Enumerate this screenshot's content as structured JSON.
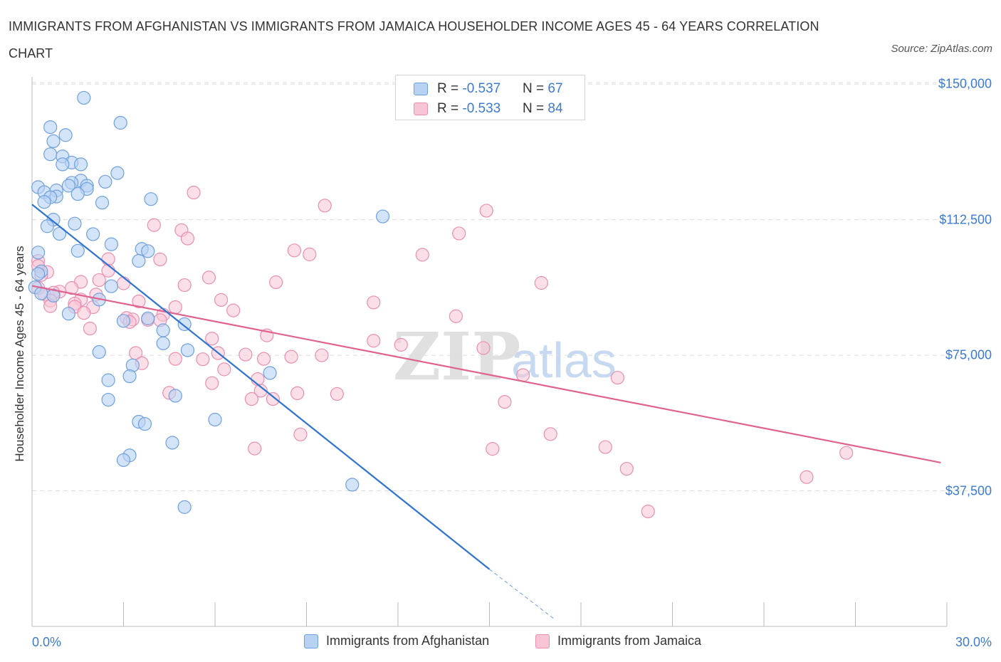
{
  "title": "IMMIGRANTS FROM AFGHANISTAN VS IMMIGRANTS FROM JAMAICA HOUSEHOLDER INCOME AGES 45 - 64 YEARS CORRELATION CHART",
  "source": "Source: ZipAtlas.com",
  "watermark": {
    "zip": "ZIP",
    "atlas": "atlas"
  },
  "colors": {
    "blue_fill": "#b8d2f3",
    "blue_stroke": "#6fa0dc",
    "blue_line": "#2f74d0",
    "pink_fill": "#f7c5d6",
    "pink_stroke": "#e98fb0",
    "pink_line": "#e0628f",
    "tick_text": "#3d7bd0",
    "grid": "#dcdcdc"
  },
  "legend_top": [
    {
      "r_label": "R = ",
      "r_value": "-0.537",
      "n_label": "N = ",
      "n_value": "67",
      "color": "blue"
    },
    {
      "r_label": "R = ",
      "r_value": "-0.533",
      "n_label": "N = ",
      "n_value": "84",
      "color": "pink"
    }
  ],
  "legend_bottom": [
    {
      "label": "Immigrants from Afghanistan",
      "color": "blue"
    },
    {
      "label": "Immigrants from Jamaica",
      "color": "pink"
    }
  ],
  "chart_data": {
    "type": "scatter",
    "title": "IMMIGRANTS FROM AFGHANISTAN VS IMMIGRANTS FROM JAMAICA HOUSEHOLDER INCOME AGES 45 - 64 YEARS CORRELATION CHART",
    "xlabel": "",
    "ylabel": "Householder Income Ages 45 - 64 years",
    "xlim": [
      0,
      30
    ],
    "ylim": [
      0,
      152000
    ],
    "x_tick_labels": [
      "0.0%",
      "30.0%"
    ],
    "y_ticks": [
      37500,
      75000,
      112500,
      150000
    ],
    "y_tick_labels": [
      "$37,500",
      "$75,000",
      "$112,500",
      "$150,000"
    ],
    "grid": "horizontal dashed",
    "legend_placement": "top-center and bottom",
    "series": [
      {
        "name": "Immigrants from Afghanistan",
        "color": "blue",
        "points": [
          [
            1.7,
            146200
          ],
          [
            0.6,
            138100
          ],
          [
            2.9,
            139300
          ],
          [
            1.1,
            135900
          ],
          [
            0.7,
            134200
          ],
          [
            0.6,
            130600
          ],
          [
            1.0,
            130000
          ],
          [
            1.3,
            128300
          ],
          [
            1.0,
            127800
          ],
          [
            1.6,
            127800
          ],
          [
            2.8,
            125400
          ],
          [
            1.6,
            123300
          ],
          [
            1.3,
            122700
          ],
          [
            2.4,
            123000
          ],
          [
            0.2,
            121500
          ],
          [
            0.4,
            120100
          ],
          [
            1.2,
            121900
          ],
          [
            1.8,
            121900
          ],
          [
            1.8,
            121000
          ],
          [
            0.8,
            120600
          ],
          [
            1.5,
            119600
          ],
          [
            0.8,
            118900
          ],
          [
            0.6,
            118700
          ],
          [
            3.9,
            118200
          ],
          [
            0.4,
            117400
          ],
          [
            2.3,
            117200
          ],
          [
            11.5,
            113400
          ],
          [
            0.7,
            112500
          ],
          [
            1.4,
            111400
          ],
          [
            0.5,
            110700
          ],
          [
            0.9,
            108600
          ],
          [
            2.0,
            108500
          ],
          [
            2.6,
            105700
          ],
          [
            0.2,
            103400
          ],
          [
            1.5,
            103900
          ],
          [
            3.6,
            104400
          ],
          [
            3.8,
            103800
          ],
          [
            3.5,
            101100
          ],
          [
            0.3,
            98200
          ],
          [
            0.2,
            97500
          ],
          [
            0.1,
            93800
          ],
          [
            2.6,
            94100
          ],
          [
            0.3,
            92100
          ],
          [
            0.7,
            91500
          ],
          [
            2.2,
            90400
          ],
          [
            1.2,
            86500
          ],
          [
            3.0,
            84500
          ],
          [
            3.8,
            85200
          ],
          [
            5.0,
            83600
          ],
          [
            4.3,
            81900
          ],
          [
            4.3,
            78300
          ],
          [
            5.1,
            76400
          ],
          [
            2.2,
            75900
          ],
          [
            3.3,
            72200
          ],
          [
            3.2,
            69200
          ],
          [
            7.8,
            70100
          ],
          [
            2.5,
            68100
          ],
          [
            4.7,
            63800
          ],
          [
            2.5,
            62700
          ],
          [
            6.0,
            57200
          ],
          [
            3.5,
            56600
          ],
          [
            3.7,
            56000
          ],
          [
            4.6,
            50800
          ],
          [
            3.2,
            47300
          ],
          [
            3.0,
            46000
          ],
          [
            10.5,
            39200
          ],
          [
            5.0,
            33000
          ]
        ]
      },
      {
        "name": "Immigrants from Jamaica",
        "color": "pink",
        "points": [
          [
            5.3,
            120000
          ],
          [
            9.6,
            116400
          ],
          [
            14.9,
            115000
          ],
          [
            4.0,
            111000
          ],
          [
            4.9,
            109600
          ],
          [
            14.0,
            108700
          ],
          [
            5.1,
            107300
          ],
          [
            8.6,
            104000
          ],
          [
            9.1,
            102900
          ],
          [
            12.8,
            102800
          ],
          [
            4.2,
            101500
          ],
          [
            2.5,
            101600
          ],
          [
            0.2,
            101100
          ],
          [
            0.2,
            99700
          ],
          [
            0.5,
            98000
          ],
          [
            2.5,
            98400
          ],
          [
            0.3,
            97200
          ],
          [
            5.8,
            96500
          ],
          [
            2.2,
            95800
          ],
          [
            1.6,
            95300
          ],
          [
            8.0,
            95200
          ],
          [
            3.0,
            94900
          ],
          [
            16.7,
            95000
          ],
          [
            5.0,
            94400
          ],
          [
            0.2,
            93600
          ],
          [
            1.3,
            93600
          ],
          [
            0.9,
            92600
          ],
          [
            0.7,
            92300
          ],
          [
            0.4,
            91900
          ],
          [
            2.1,
            91800
          ],
          [
            1.6,
            90400
          ],
          [
            0.6,
            90100
          ],
          [
            6.2,
            90300
          ],
          [
            11.2,
            89600
          ],
          [
            3.5,
            89900
          ],
          [
            1.4,
            89300
          ],
          [
            0.6,
            88600
          ],
          [
            2.0,
            88300
          ],
          [
            1.4,
            88400
          ],
          [
            4.7,
            88300
          ],
          [
            6.6,
            87400
          ],
          [
            1.7,
            86700
          ],
          [
            4.3,
            86200
          ],
          [
            13.9,
            85800
          ],
          [
            3.1,
            85300
          ],
          [
            3.3,
            84900
          ],
          [
            3.8,
            84800
          ],
          [
            4.2,
            84700
          ],
          [
            3.2,
            84200
          ],
          [
            1.9,
            82400
          ],
          [
            7.7,
            80500
          ],
          [
            5.9,
            79600
          ],
          [
            11.2,
            79000
          ],
          [
            12.1,
            77900
          ],
          [
            14.8,
            77000
          ],
          [
            3.4,
            75600
          ],
          [
            4.7,
            74000
          ],
          [
            6.1,
            75600
          ],
          [
            5.6,
            73900
          ],
          [
            7.0,
            75200
          ],
          [
            7.6,
            74000
          ],
          [
            8.5,
            74600
          ],
          [
            9.5,
            75000
          ],
          [
            3.6,
            72800
          ],
          [
            6.3,
            71100
          ],
          [
            16.1,
            69500
          ],
          [
            19.2,
            68800
          ],
          [
            7.4,
            68400
          ],
          [
            5.9,
            67300
          ],
          [
            7.5,
            65200
          ],
          [
            4.5,
            64600
          ],
          [
            8.7,
            64500
          ],
          [
            10.0,
            64300
          ],
          [
            7.2,
            62900
          ],
          [
            7.9,
            62900
          ],
          [
            15.5,
            62100
          ],
          [
            8.8,
            53100
          ],
          [
            17.0,
            53200
          ],
          [
            7.3,
            49200
          ],
          [
            15.1,
            49100
          ],
          [
            18.8,
            49600
          ],
          [
            26.7,
            48000
          ],
          [
            19.5,
            43600
          ],
          [
            25.4,
            41300
          ],
          [
            20.2,
            31800
          ]
        ]
      }
    ],
    "trendlines": [
      {
        "series": "Immigrants from Afghanistan",
        "x": [
          0,
          15
        ],
        "y": [
          116700,
          15800
        ],
        "dashed_extension_to": [
          17.1,
          2200
        ]
      },
      {
        "series": "Immigrants from Jamaica",
        "x": [
          0,
          29.8
        ],
        "y": [
          94200,
          45300
        ]
      }
    ]
  }
}
